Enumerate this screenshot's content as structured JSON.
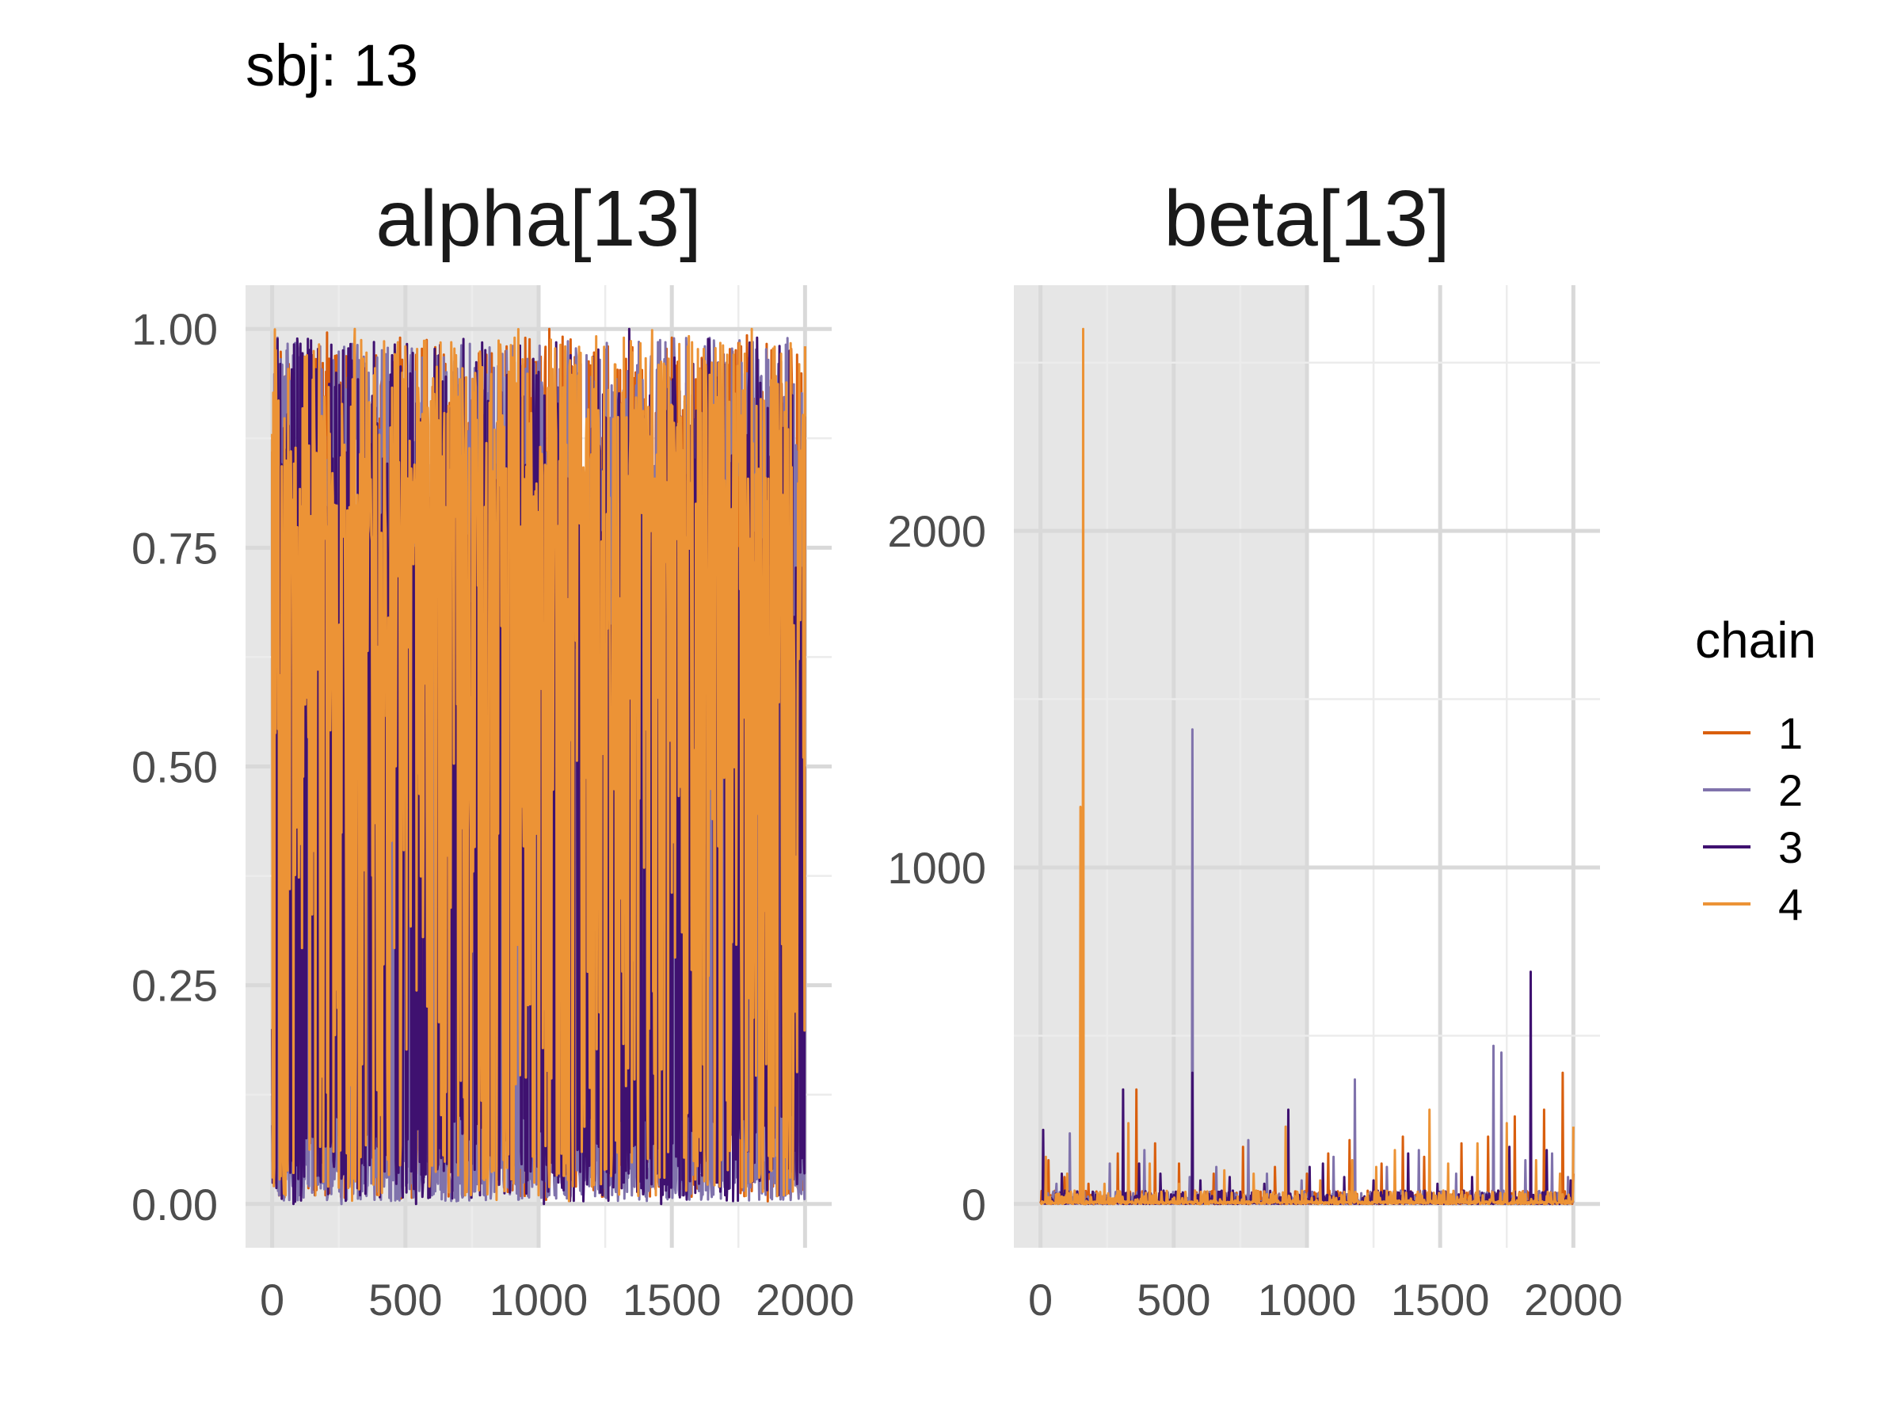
{
  "figure": {
    "title": "sbj: 13"
  },
  "legend": {
    "title": "chain",
    "items": [
      {
        "label": "1",
        "color": "#d95f0e"
      },
      {
        "label": "2",
        "color": "#8073ac"
      },
      {
        "label": "3",
        "color": "#3f1170"
      },
      {
        "label": "4",
        "color": "#ec9336"
      }
    ]
  },
  "chart_data": [
    {
      "type": "line",
      "title": "alpha[13]",
      "xlabel": "",
      "ylabel": "",
      "xlim": [
        -100,
        2100
      ],
      "ylim": [
        -0.05,
        1.05
      ],
      "xticks": [
        0,
        500,
        1000,
        1500,
        2000
      ],
      "xtick_labels": [
        "0",
        "500",
        "1000",
        "1500",
        "2000"
      ],
      "yticks": [
        0,
        0.25,
        0.5,
        0.75,
        1.0
      ],
      "ytick_labels": [
        "0.00",
        "0.25",
        "0.50",
        "0.75",
        "1.00"
      ],
      "warmup_region": [
        0,
        1000
      ],
      "grid": true,
      "series": [
        {
          "name": "1",
          "color": "#d95f0e",
          "sparse_points": [
            [
              0,
              0.86
            ],
            [
              40,
              0.02
            ],
            [
              120,
              0.95
            ],
            [
              200,
              0.01
            ],
            [
              300,
              0.97
            ],
            [
              380,
              0.05
            ],
            [
              480,
              0.99
            ],
            [
              560,
              0.03
            ],
            [
              650,
              0.96
            ],
            [
              760,
              0.02
            ],
            [
              880,
              0.98
            ],
            [
              960,
              0.04
            ],
            [
              1040,
              1.0
            ],
            [
              1140,
              0.02
            ],
            [
              1260,
              0.98
            ],
            [
              1360,
              0.03
            ],
            [
              1500,
              0.99
            ],
            [
              1620,
              0.05
            ],
            [
              1760,
              0.98
            ],
            [
              1880,
              0.02
            ],
            [
              2000,
              0.98
            ]
          ]
        },
        {
          "name": "2",
          "color": "#8073ac",
          "sparse_points": [
            [
              0,
              0.09
            ],
            [
              20,
              0.99
            ],
            [
              100,
              0.01
            ],
            [
              180,
              0.98
            ],
            [
              260,
              0.0
            ],
            [
              340,
              0.95
            ],
            [
              420,
              0.02
            ],
            [
              520,
              0.97
            ],
            [
              600,
              0.01
            ],
            [
              720,
              0.94
            ],
            [
              840,
              0.03
            ],
            [
              940,
              0.96
            ],
            [
              1060,
              0.01
            ],
            [
              1180,
              0.97
            ],
            [
              1300,
              0.02
            ],
            [
              1420,
              0.95
            ],
            [
              1540,
              0.01
            ],
            [
              1660,
              0.97
            ],
            [
              1780,
              0.02
            ],
            [
              1900,
              0.96
            ],
            [
              2000,
              0.5
            ]
          ]
        },
        {
          "name": "3",
          "color": "#3f1170",
          "sparse_points": [
            [
              0,
              0.2
            ],
            [
              30,
              0.96
            ],
            [
              80,
              0.0
            ],
            [
              150,
              0.97
            ],
            [
              160,
              0.01
            ],
            [
              240,
              0.95
            ],
            [
              330,
              0.01
            ],
            [
              450,
              0.97
            ],
            [
              540,
              0.0
            ],
            [
              640,
              0.94
            ],
            [
              780,
              0.01
            ],
            [
              900,
              0.96
            ],
            [
              1020,
              0.0
            ],
            [
              1120,
              0.97
            ],
            [
              1240,
              0.01
            ],
            [
              1340,
              1.0
            ],
            [
              1460,
              0.0
            ],
            [
              1580,
              0.96
            ],
            [
              1700,
              0.01
            ],
            [
              1820,
              0.99
            ],
            [
              1900,
              0.01
            ],
            [
              2000,
              0.9
            ]
          ]
        },
        {
          "name": "4",
          "color": "#ec9336",
          "sparse_points": [
            [
              0,
              0.88
            ],
            [
              50,
              0.01
            ],
            [
              130,
              0.97
            ],
            [
              210,
              0.02
            ],
            [
              310,
              1.0
            ],
            [
              400,
              0.01
            ],
            [
              500,
              0.98
            ],
            [
              590,
              0.02
            ],
            [
              690,
              0.97
            ],
            [
              800,
              0.03
            ],
            [
              910,
              0.99
            ],
            [
              1000,
              0.01
            ],
            [
              1100,
              0.98
            ],
            [
              1200,
              0.02
            ],
            [
              1320,
              0.99
            ],
            [
              1440,
              0.01
            ],
            [
              1560,
              0.98
            ],
            [
              1680,
              0.02
            ],
            [
              1800,
              1.0
            ],
            [
              1920,
              0.01
            ],
            [
              2000,
              0.98
            ]
          ]
        }
      ]
    },
    {
      "type": "line",
      "title": "beta[13]",
      "xlabel": "",
      "ylabel": "",
      "xlim": [
        -100,
        2100
      ],
      "ylim": [
        -130,
        2730
      ],
      "xticks": [
        0,
        500,
        1000,
        1500,
        2000
      ],
      "xtick_labels": [
        "0",
        "500",
        "1000",
        "1500",
        "2000"
      ],
      "yticks": [
        0,
        1000,
        2000
      ],
      "ytick_labels": [
        "0",
        "1000",
        "2000"
      ],
      "warmup_region": [
        0,
        1000
      ],
      "grid": true,
      "series": [
        {
          "name": "1",
          "color": "#d95f0e",
          "spikes": [
            [
              30,
              130
            ],
            [
              90,
              80
            ],
            [
              180,
              60
            ],
            [
              290,
              150
            ],
            [
              360,
              340
            ],
            [
              430,
              180
            ],
            [
              520,
              120
            ],
            [
              650,
              90
            ],
            [
              760,
              170
            ],
            [
              880,
              110
            ],
            [
              1000,
              90
            ],
            [
              1080,
              150
            ],
            [
              1160,
              190
            ],
            [
              1280,
              120
            ],
            [
              1360,
              200
            ],
            [
              1440,
              140
            ],
            [
              1580,
              180
            ],
            [
              1680,
              200
            ],
            [
              1780,
              260
            ],
            [
              1890,
              280
            ],
            [
              1960,
              390
            ],
            [
              2000,
              90
            ]
          ]
        },
        {
          "name": "2",
          "color": "#8073ac",
          "spikes": [
            [
              60,
              60
            ],
            [
              110,
              210
            ],
            [
              260,
              120
            ],
            [
              390,
              160
            ],
            [
              560,
              80
            ],
            [
              570,
              1410
            ],
            [
              660,
              110
            ],
            [
              780,
              190
            ],
            [
              850,
              90
            ],
            [
              980,
              70
            ],
            [
              1100,
              140
            ],
            [
              1180,
              370
            ],
            [
              1300,
              110
            ],
            [
              1420,
              160
            ],
            [
              1560,
              90
            ],
            [
              1700,
              470
            ],
            [
              1730,
              450
            ],
            [
              1820,
              130
            ],
            [
              1920,
              150
            ],
            [
              1980,
              80
            ]
          ]
        },
        {
          "name": "3",
          "color": "#3f1170",
          "spikes": [
            [
              10,
              220
            ],
            [
              80,
              90
            ],
            [
              150,
              140
            ],
            [
              310,
              340
            ],
            [
              370,
              120
            ],
            [
              450,
              90
            ],
            [
              570,
              390
            ],
            [
              600,
              70
            ],
            [
              710,
              80
            ],
            [
              840,
              60
            ],
            [
              930,
              280
            ],
            [
              1010,
              110
            ],
            [
              1060,
              120
            ],
            [
              1140,
              80
            ],
            [
              1250,
              70
            ],
            [
              1380,
              150
            ],
            [
              1490,
              60
            ],
            [
              1620,
              80
            ],
            [
              1760,
              170
            ],
            [
              1840,
              690
            ],
            [
              1900,
              160
            ],
            [
              1990,
              70
            ]
          ]
        },
        {
          "name": "4",
          "color": "#ec9336",
          "spikes": [
            [
              20,
              140
            ],
            [
              100,
              90
            ],
            [
              150,
              1180
            ],
            [
              160,
              2600
            ],
            [
              240,
              60
            ],
            [
              330,
              240
            ],
            [
              410,
              120
            ],
            [
              520,
              60
            ],
            [
              690,
              100
            ],
            [
              800,
              90
            ],
            [
              920,
              230
            ],
            [
              1050,
              70
            ],
            [
              1170,
              130
            ],
            [
              1260,
              110
            ],
            [
              1330,
              160
            ],
            [
              1460,
              280
            ],
            [
              1530,
              120
            ],
            [
              1640,
              180
            ],
            [
              1750,
              240
            ],
            [
              1860,
              130
            ],
            [
              1950,
              90
            ],
            [
              2000,
              230
            ]
          ]
        }
      ]
    }
  ]
}
